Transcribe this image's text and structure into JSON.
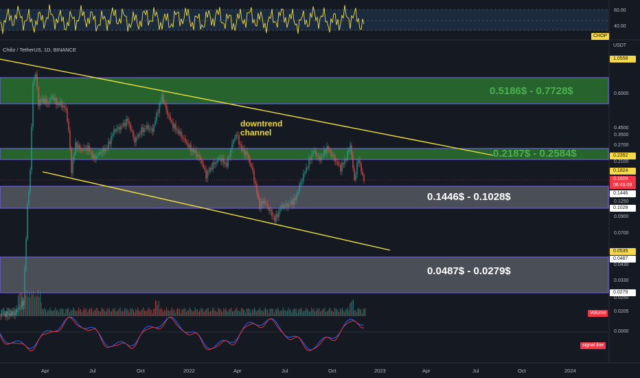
{
  "chart_header": {
    "symbol_line": "Chiliz / TetherUS, 1D, BINANCE",
    "currency": "USDT"
  },
  "chop_indicator": {
    "label": "CHOP",
    "scale": [
      "60.00",
      "40.00"
    ],
    "upper_band": 61.8,
    "lower_band": 38.2
  },
  "annotation": {
    "text": "downtrend\nchannel"
  },
  "zones": [
    {
      "label": "0.5186$ - 0.7728$",
      "color": "#4caf50"
    },
    {
      "label": "0.2187$ - 0.2584$",
      "color": "#4caf50"
    },
    {
      "label": "0.1446$ - 0.1028$",
      "color": "#ffffff"
    },
    {
      "label": "0.0487$ - 0.0279$",
      "color": "#ffffff"
    }
  ],
  "price_axis": {
    "ticks": [
      "0.6000",
      "0.4500",
      "0.3500",
      "0.2700",
      "0.2100",
      "0.1250",
      "0.0900",
      "0.0700",
      "0.0430",
      "0.0330",
      "0.0250"
    ],
    "boxes": [
      {
        "text": "1.0558",
        "bg": "#f5d94a",
        "fg": "#131722"
      },
      {
        "text": "0.2352",
        "bg": "#f5d94a",
        "fg": "#131722"
      },
      {
        "text": "0.1824",
        "bg": "#f5d94a",
        "fg": "#131722"
      },
      {
        "text": "0.1609",
        "bg": "#f23645",
        "fg": "#ffffff"
      },
      {
        "text": "06:43:09",
        "bg": "#f23645",
        "fg": "#ffffff"
      },
      {
        "text": "0.1446",
        "bg": "#ffffff",
        "fg": "#131722"
      },
      {
        "text": "0.1028",
        "bg": "#ffffff",
        "fg": "#131722"
      },
      {
        "text": "0.0535",
        "bg": "#f5d94a",
        "fg": "#131722"
      },
      {
        "text": "0.0487",
        "bg": "#ffffff",
        "fg": "#131722"
      },
      {
        "text": "0.0279",
        "bg": "#ffffff",
        "fg": "#131722"
      }
    ]
  },
  "volume_panel": {
    "tag": "Volume",
    "ticks": [
      "0.0205",
      "0.0000"
    ]
  },
  "signal_panel": {
    "tag": "signal line"
  },
  "time_axis": {
    "labels": [
      "Apr",
      "Jul",
      "Oct",
      "2022",
      "Apr",
      "Jul",
      "Oct",
      "2023",
      "Apr",
      "Jul",
      "Oct",
      "2024"
    ]
  },
  "colors": {
    "background": "#151a22",
    "up_candle": "#26a69a",
    "down_candle": "#ef5350",
    "trendline": "#f0e040",
    "green_zone": "#2e7d32",
    "grey_zone": "#8a8f98",
    "zone_border": "#7b61ff",
    "chop_line": "#f0e040",
    "tsi_line": "#2962ff",
    "signal_line": "#f23645"
  }
}
